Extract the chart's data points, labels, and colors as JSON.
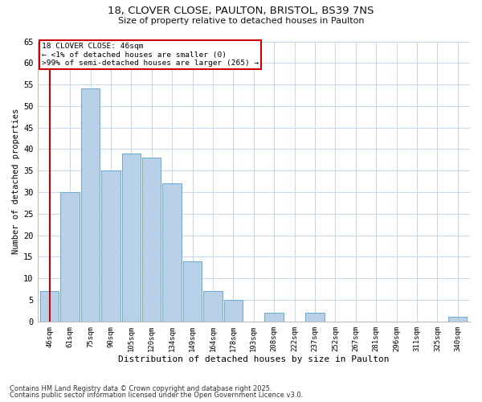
{
  "title_line1": "18, CLOVER CLOSE, PAULTON, BRISTOL, BS39 7NS",
  "title_line2": "Size of property relative to detached houses in Paulton",
  "xlabel": "Distribution of detached houses by size in Paulton",
  "ylabel": "Number of detached properties",
  "bar_color": "#b8d0e8",
  "bar_edge_color": "#6aaad4",
  "highlight_color": "#cc0000",
  "background_color": "#ffffff",
  "grid_color": "#c8d8ea",
  "categories": [
    "46sqm",
    "61sqm",
    "75sqm",
    "90sqm",
    "105sqm",
    "120sqm",
    "134sqm",
    "149sqm",
    "164sqm",
    "178sqm",
    "193sqm",
    "208sqm",
    "222sqm",
    "237sqm",
    "252sqm",
    "267sqm",
    "281sqm",
    "296sqm",
    "311sqm",
    "325sqm",
    "340sqm"
  ],
  "values": [
    7,
    30,
    54,
    35,
    39,
    38,
    32,
    14,
    7,
    5,
    0,
    2,
    0,
    2,
    0,
    0,
    0,
    0,
    0,
    0,
    1
  ],
  "highlight_index": 0,
  "ylim": [
    0,
    65
  ],
  "yticks": [
    0,
    5,
    10,
    15,
    20,
    25,
    30,
    35,
    40,
    45,
    50,
    55,
    60,
    65
  ],
  "annotation_title": "18 CLOVER CLOSE: 46sqm",
  "annotation_line1": "← <1% of detached houses are smaller (0)",
  "annotation_line2": ">99% of semi-detached houses are larger (265) →",
  "footnote1": "Contains HM Land Registry data © Crown copyright and database right 2025.",
  "footnote2": "Contains public sector information licensed under the Open Government Licence v3.0."
}
